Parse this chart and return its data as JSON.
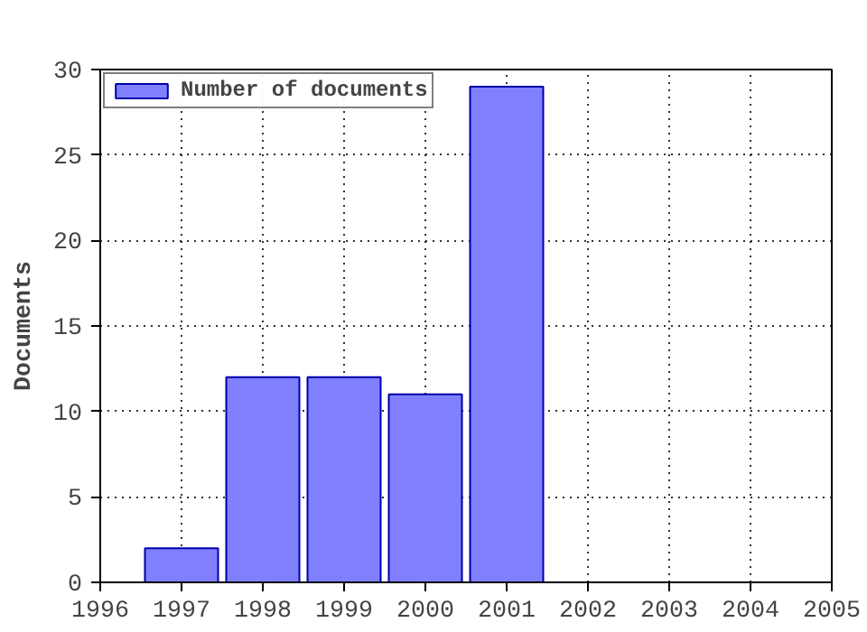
{
  "chart_data": {
    "type": "bar",
    "ylabel": "Documents",
    "x": [
      1997,
      1998,
      1999,
      2000,
      2001
    ],
    "series": [
      {
        "name": "Number of documents",
        "color": "#8080ff",
        "values": [
          2,
          12,
          12,
          11,
          29
        ]
      }
    ],
    "xlim": [
      1996,
      2005
    ],
    "xticks": [
      1996,
      1997,
      1998,
      1999,
      2000,
      2001,
      2002,
      2003,
      2004,
      2005
    ],
    "ylim": [
      0,
      30
    ],
    "yticks": [
      0,
      5,
      10,
      15,
      20,
      25,
      30
    ],
    "grid": true,
    "legend": "top left",
    "line_style": "dotted"
  }
}
